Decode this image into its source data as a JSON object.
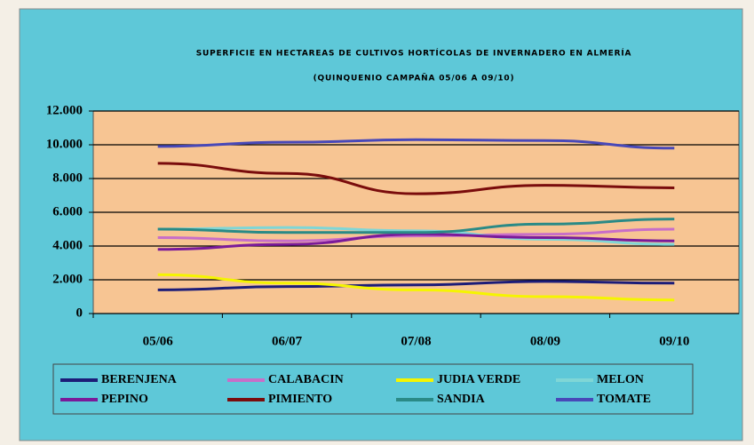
{
  "chart_data": {
    "type": "line",
    "title": "SUPERFICIE EN HECTAREAS DE CULTIVOS HORTÍCOLAS DE INVERNADERO EN ALMERÍA",
    "subtitle": "(QUINQUENIO CAMPAÑA 05/06 A 09/10)",
    "categories": [
      "05/06",
      "06/07",
      "07/08",
      "08/09",
      "09/10"
    ],
    "ylim": [
      0,
      12000
    ],
    "yticks": [
      0,
      {
        "value": 2000,
        "label": "2.000"
      },
      {
        "value": 4000,
        "label": "4.000"
      },
      {
        "value": 6000,
        "label": "6.000"
      },
      {
        "value": 8000,
        "label": "8.000"
      },
      {
        "value": 10000,
        "label": "10.000"
      },
      {
        "value": 12000,
        "label": "12.000"
      }
    ],
    "grid": true,
    "legend": "bottom",
    "series": [
      {
        "name": "BERENJENA",
        "color": "#1c1c78",
        "values": [
          1400,
          1600,
          1700,
          1900,
          1800
        ]
      },
      {
        "name": "CALABACIN",
        "color": "#c86ec8",
        "values": [
          4500,
          4300,
          4600,
          4700,
          5000
        ]
      },
      {
        "name": "JUDIA VERDE",
        "color": "#f5f500",
        "values": [
          2300,
          1800,
          1400,
          1000,
          800
        ]
      },
      {
        "name": "MELON",
        "color": "#7fd6d6",
        "values": [
          5000,
          5100,
          4900,
          4400,
          4100
        ]
      },
      {
        "name": "PEPINO",
        "color": "#7a1a9a",
        "values": [
          3800,
          4100,
          4700,
          4500,
          4300
        ]
      },
      {
        "name": "PIMIENTO",
        "color": "#7a0c0c",
        "values": [
          8900,
          8300,
          7100,
          7600,
          7450
        ]
      },
      {
        "name": "SANDIA",
        "color": "#2a8a86",
        "values": [
          5000,
          4800,
          4800,
          5300,
          5600
        ]
      },
      {
        "name": "TOMATE",
        "color": "#4848b8",
        "values": [
          9900,
          10150,
          10300,
          10250,
          9800
        ]
      }
    ]
  }
}
